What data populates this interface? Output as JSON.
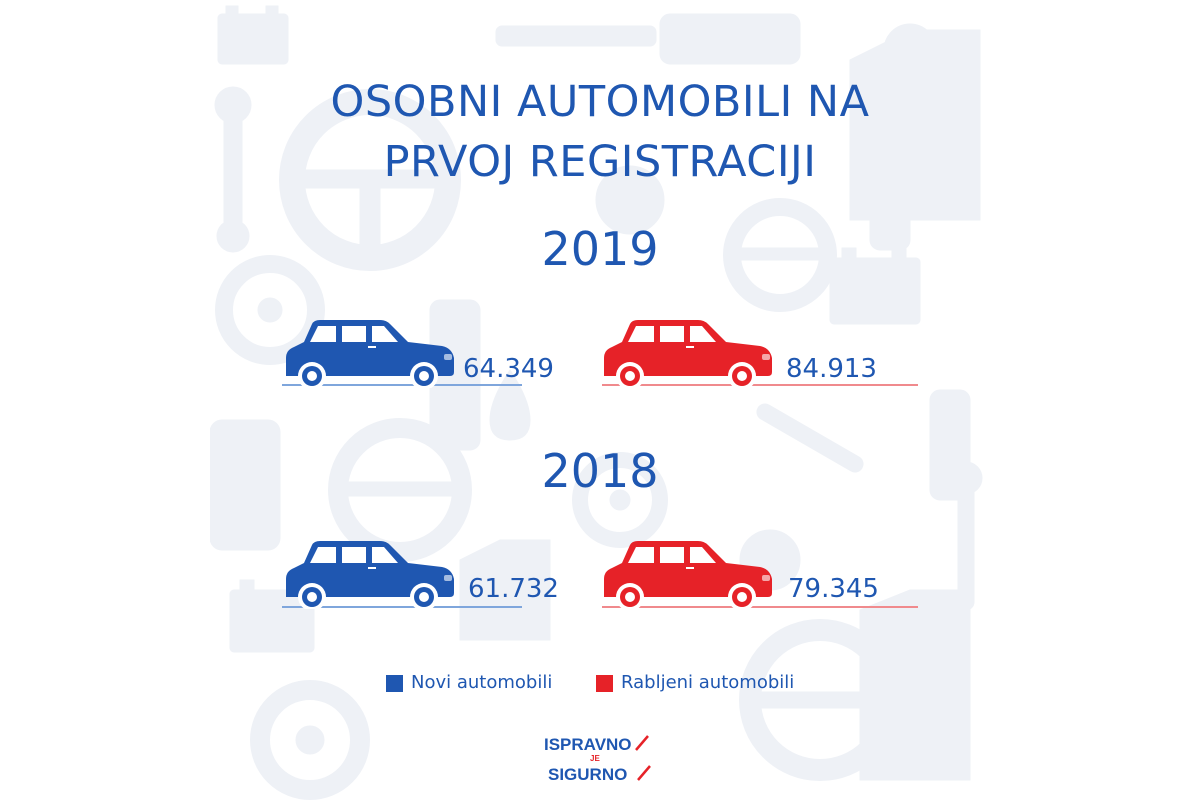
{
  "title_lines": [
    "OSOBNI AUTOMOBILI NA",
    "PRVOJ REGISTRACIJI"
  ],
  "colors": {
    "new_cars": "#1f57b1",
    "used_cars": "#e62228",
    "text": "#1f57b1",
    "pattern": "#eef1f6"
  },
  "years": [
    {
      "year": "2019",
      "new_cars": "64.349",
      "used_cars": "84.913"
    },
    {
      "year": "2018",
      "new_cars": "61.732",
      "used_cars": "79.345"
    }
  ],
  "legend": {
    "new_label": "Novi automobili",
    "used_label": "Rabljeni automobili"
  },
  "logo": {
    "line1": "ISPRAVNO",
    "middle": "JE",
    "line2": "SIGURNO"
  },
  "background_icons": [
    "battery-icon",
    "wrench-icon",
    "steering-wheel-icon",
    "oil-bottle-icon",
    "brake-disc-icon",
    "spark-plug-icon",
    "oil-drop-icon",
    "gear-icon"
  ]
}
